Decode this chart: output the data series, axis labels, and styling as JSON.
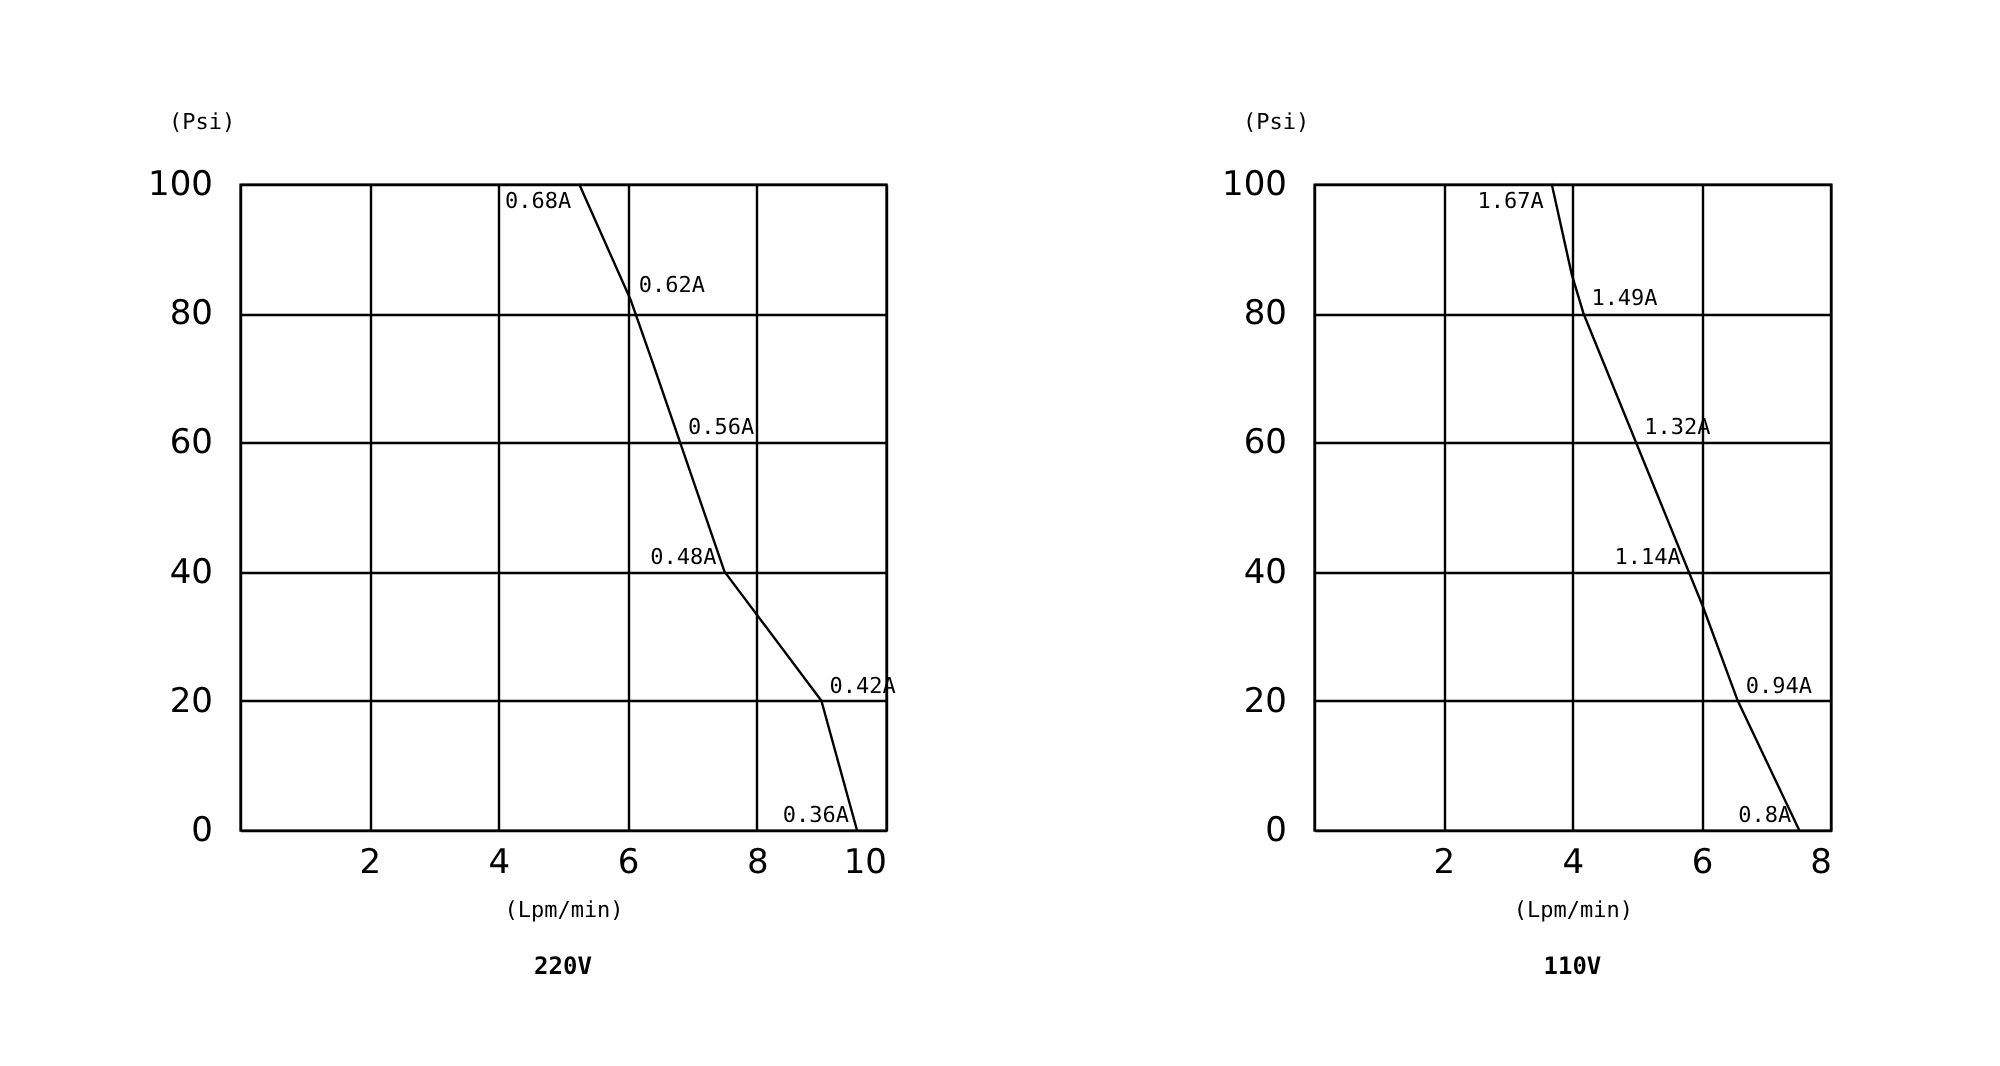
{
  "chart_data": [
    {
      "type": "line",
      "title": "220V",
      "xlabel": "(Lpm/min)",
      "ylabel": "(Psi)",
      "xlim": [
        0,
        10
      ],
      "ylim": [
        0,
        100
      ],
      "xticks": [
        {
          "value": 0,
          "label": null
        },
        2,
        4,
        6,
        8,
        10
      ],
      "yticks": [
        0,
        20,
        40,
        60,
        80,
        100
      ],
      "grid": true,
      "series": [
        {
          "color": "#000000",
          "x": [
            5.25,
            6.05,
            6.4,
            7.5,
            9,
            9.55
          ],
          "values": [
            100,
            82,
            72,
            40,
            20,
            0
          ]
        }
      ],
      "annotations": [
        {
          "text": "0.68A",
          "x": 5.25,
          "y": 100
        },
        {
          "text": "0.62A",
          "x": 6.05,
          "y": 82
        },
        {
          "text": "0.56A",
          "x": 6.81,
          "y": 60
        },
        {
          "text": "0.48A",
          "x": 7.5,
          "y": 40
        },
        {
          "text": "0.42A",
          "x": 9,
          "y": 20
        },
        {
          "text": "0.36A",
          "x": 9.55,
          "y": 0
        }
      ]
    },
    {
      "type": "line",
      "title": "110V",
      "xlabel": "(Lpm/min)",
      "ylabel": "(Psi)",
      "xlim": [
        0,
        8
      ],
      "ylim": [
        0,
        100
      ],
      "xticks": [
        {
          "value": 0,
          "label": null
        },
        2,
        4,
        6,
        8
      ],
      "yticks": [
        0,
        20,
        40,
        60,
        80,
        100
      ],
      "grid": true,
      "series": [
        {
          "color": "#000000",
          "x": [
            3.68,
            3.99,
            4.17,
            6.02,
            6.56,
            7.51
          ],
          "values": [
            100,
            86,
            80,
            34.6,
            20,
            0
          ]
        }
      ],
      "annotations": [
        {
          "text": "1.67A",
          "x": 3.68,
          "y": 100
        },
        {
          "text": "1.49A",
          "x": 4.17,
          "y": 80
        },
        {
          "text": "1.32A",
          "x": 4.99,
          "y": 60
        },
        {
          "text": "1.14A",
          "x": 5.8,
          "y": 40
        },
        {
          "text": "0.94A",
          "x": 6.56,
          "y": 20
        },
        {
          "text": "0.8A",
          "x": 7.51,
          "y": 0
        }
      ]
    }
  ]
}
